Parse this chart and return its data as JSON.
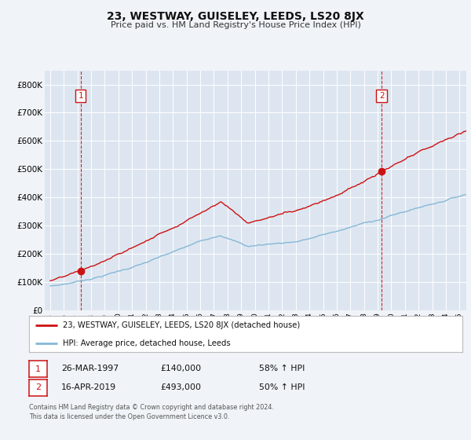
{
  "title": "23, WESTWAY, GUISELEY, LEEDS, LS20 8JX",
  "subtitle": "Price paid vs. HM Land Registry's House Price Index (HPI)",
  "background_color": "#f0f4f8",
  "plot_bg_color": "#dde6f0",
  "grid_color": "#ffffff",
  "red_color": "#cc1111",
  "blue_color": "#85b8d8",
  "sale1_year": 1997.23,
  "sale1_price": 140000,
  "sale1_label": "26-MAR-1997",
  "sale1_pct": "58%",
  "sale2_year": 2019.29,
  "sale2_price": 493000,
  "sale2_label": "16-APR-2019",
  "sale2_pct": "50%",
  "ylim_max": 850000,
  "xlim_min": 1994.6,
  "xlim_max": 2025.5,
  "legend_line1": "23, WESTWAY, GUISELEY, LEEDS, LS20 8JX (detached house)",
  "legend_line2": "HPI: Average price, detached house, Leeds",
  "footer1": "Contains HM Land Registry data © Crown copyright and database right 2024.",
  "footer2": "This data is licensed under the Open Government Licence v3.0."
}
